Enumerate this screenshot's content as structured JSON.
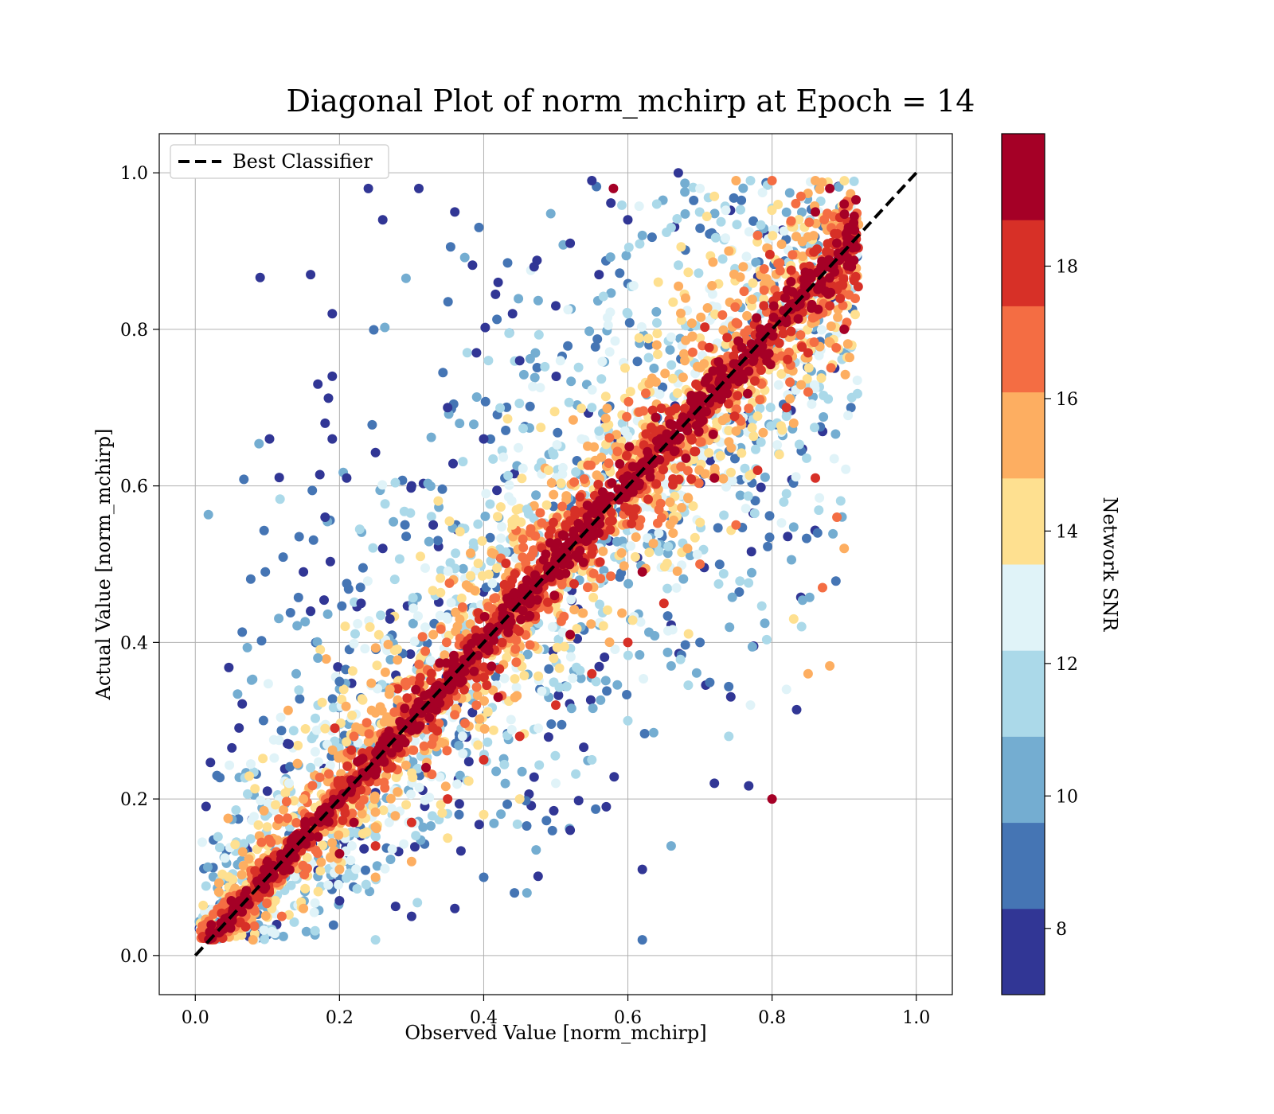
{
  "chart_data": {
    "type": "scatter",
    "title": "Diagonal Plot of norm_mchirp at Epoch = 14",
    "xlabel": "Observed Value [norm_mchirp]",
    "ylabel": "Actual Value [norm_mchirp]",
    "xlim": [
      -0.05,
      1.05
    ],
    "ylim": [
      -0.05,
      1.05
    ],
    "xticks": [
      "0.0",
      "0.2",
      "0.4",
      "0.6",
      "0.8",
      "1.0"
    ],
    "yticks": [
      "0.0",
      "0.2",
      "0.4",
      "0.6",
      "0.8",
      "1.0"
    ],
    "grid": true,
    "legend": {
      "position": "top-left",
      "entries": [
        "Best Classifier"
      ]
    },
    "reference_line": {
      "name": "Best Classifier",
      "style": "dashed",
      "color": "#000000",
      "x": [
        0.0,
        1.0
      ],
      "y": [
        0.0,
        1.0
      ]
    },
    "colorbar": {
      "label": "Network SNR",
      "range": [
        7,
        20
      ],
      "ticks": [
        "8",
        "10",
        "12",
        "14",
        "16",
        "18"
      ],
      "bins": [
        7,
        8.3,
        9.6,
        10.9,
        12.2,
        13.5,
        14.8,
        16.1,
        17.4,
        18.7,
        20
      ],
      "colors": [
        "#313695",
        "#4575b4",
        "#74add1",
        "#abd9e9",
        "#e0f3f8",
        "#fee090",
        "#fdae61",
        "#f46d43",
        "#d73027",
        "#a50026"
      ]
    },
    "points_summary": "dense scatter concentrated along the diagonal; high SNR (dark red) tightly around y=x, low SNR (blue) scattered above-left and below-right",
    "points": [
      [
        0.02,
        0.03,
        19
      ],
      [
        0.05,
        0.07,
        19
      ],
      [
        0.1,
        0.12,
        19
      ],
      [
        0.2,
        0.2,
        19
      ],
      [
        0.3,
        0.3,
        19
      ],
      [
        0.4,
        0.4,
        19
      ],
      [
        0.5,
        0.5,
        19
      ],
      [
        0.6,
        0.6,
        19
      ],
      [
        0.7,
        0.7,
        19
      ],
      [
        0.8,
        0.8,
        19
      ],
      [
        0.86,
        0.95,
        19
      ],
      [
        0.84,
        0.97,
        17
      ],
      [
        0.86,
        0.99,
        16
      ],
      [
        0.88,
        0.98,
        19
      ],
      [
        0.9,
        0.96,
        19
      ],
      [
        0.91,
        0.88,
        19
      ],
      [
        0.9,
        0.8,
        19
      ],
      [
        0.85,
        0.72,
        17
      ],
      [
        0.83,
        0.68,
        16
      ],
      [
        0.81,
        0.64,
        14
      ],
      [
        0.24,
        0.98,
        8
      ],
      [
        0.31,
        0.98,
        8
      ],
      [
        0.16,
        0.87,
        8
      ],
      [
        0.19,
        0.82,
        8
      ],
      [
        0.26,
        0.94,
        8
      ],
      [
        0.42,
        0.86,
        8
      ],
      [
        0.36,
        0.95,
        8
      ],
      [
        0.55,
        0.99,
        8
      ],
      [
        0.58,
        0.98,
        19
      ],
      [
        0.67,
        1.0,
        8
      ],
      [
        0.17,
        0.73,
        8
      ],
      [
        0.19,
        0.74,
        8
      ],
      [
        0.18,
        0.68,
        8
      ],
      [
        0.19,
        0.66,
        8
      ],
      [
        0.21,
        0.61,
        8
      ],
      [
        0.18,
        0.56,
        8
      ],
      [
        0.15,
        0.49,
        8
      ],
      [
        0.16,
        0.44,
        8
      ],
      [
        0.14,
        0.36,
        10
      ],
      [
        0.17,
        0.38,
        10
      ],
      [
        0.18,
        0.29,
        14
      ],
      [
        0.13,
        0.27,
        8
      ],
      [
        0.16,
        0.24,
        12
      ],
      [
        0.1,
        0.21,
        8
      ],
      [
        0.27,
        0.43,
        8
      ],
      [
        0.33,
        0.55,
        8
      ],
      [
        0.4,
        0.66,
        8
      ],
      [
        0.45,
        0.76,
        8
      ],
      [
        0.5,
        0.83,
        8
      ],
      [
        0.56,
        0.87,
        8
      ],
      [
        0.62,
        0.92,
        10
      ],
      [
        0.66,
        0.93,
        12
      ],
      [
        0.72,
        0.97,
        14
      ],
      [
        0.77,
        0.99,
        12
      ],
      [
        0.6,
        0.82,
        12
      ],
      [
        0.55,
        0.7,
        12
      ],
      [
        0.49,
        0.62,
        14
      ],
      [
        0.44,
        0.55,
        14
      ],
      [
        0.38,
        0.47,
        15
      ],
      [
        0.33,
        0.41,
        16
      ],
      [
        0.27,
        0.34,
        16
      ],
      [
        0.22,
        0.28,
        17
      ],
      [
        0.68,
        0.84,
        15
      ],
      [
        0.74,
        0.9,
        16
      ],
      [
        0.78,
        0.92,
        17
      ],
      [
        0.64,
        0.78,
        16
      ],
      [
        0.2,
        0.07,
        8
      ],
      [
        0.25,
        0.02,
        12
      ],
      [
        0.3,
        0.05,
        8
      ],
      [
        0.36,
        0.06,
        8
      ],
      [
        0.4,
        0.1,
        9
      ],
      [
        0.46,
        0.08,
        10
      ],
      [
        0.52,
        0.16,
        8
      ],
      [
        0.57,
        0.19,
        8
      ],
      [
        0.62,
        0.11,
        8
      ],
      [
        0.66,
        0.14,
        10
      ],
      [
        0.62,
        0.02,
        9
      ],
      [
        0.72,
        0.22,
        8
      ],
      [
        0.8,
        0.2,
        19
      ],
      [
        0.74,
        0.28,
        12
      ],
      [
        0.77,
        0.32,
        13
      ],
      [
        0.82,
        0.34,
        13
      ],
      [
        0.85,
        0.36,
        15
      ],
      [
        0.88,
        0.37,
        16
      ],
      [
        0.83,
        0.43,
        14
      ],
      [
        0.87,
        0.47,
        17
      ],
      [
        0.9,
        0.52,
        16
      ],
      [
        0.89,
        0.56,
        17
      ],
      [
        0.86,
        0.61,
        18
      ],
      [
        0.82,
        0.59,
        12
      ],
      [
        0.7,
        0.4,
        9
      ],
      [
        0.66,
        0.37,
        10
      ],
      [
        0.6,
        0.3,
        11
      ],
      [
        0.55,
        0.25,
        12
      ],
      [
        0.5,
        0.22,
        13
      ],
      [
        0.45,
        0.2,
        14
      ],
      [
        0.4,
        0.18,
        14
      ],
      [
        0.35,
        0.15,
        14
      ],
      [
        0.3,
        0.12,
        15
      ],
      [
        0.25,
        0.1,
        15
      ],
      [
        0.2,
        0.11,
        16
      ],
      [
        0.15,
        0.06,
        16
      ],
      [
        0.12,
        0.05,
        17
      ],
      [
        0.08,
        0.02,
        16
      ],
      [
        0.75,
        0.55,
        17
      ],
      [
        0.7,
        0.5,
        17
      ],
      [
        0.65,
        0.45,
        18
      ],
      [
        0.6,
        0.4,
        18
      ],
      [
        0.55,
        0.36,
        18
      ],
      [
        0.5,
        0.32,
        18
      ],
      [
        0.45,
        0.28,
        18
      ],
      [
        0.4,
        0.25,
        18
      ],
      [
        0.35,
        0.2,
        18
      ],
      [
        0.3,
        0.17,
        18
      ],
      [
        0.25,
        0.14,
        18
      ],
      [
        0.2,
        0.13,
        19
      ],
      [
        0.78,
        0.62,
        18
      ],
      [
        0.82,
        0.7,
        18
      ],
      [
        0.85,
        0.77,
        18
      ],
      [
        0.88,
        0.83,
        18
      ],
      [
        0.72,
        0.61,
        19
      ],
      [
        0.62,
        0.49,
        19
      ],
      [
        0.52,
        0.41,
        19
      ],
      [
        0.42,
        0.33,
        19
      ],
      [
        0.32,
        0.24,
        19
      ],
      [
        0.22,
        0.17,
        19
      ],
      [
        0.15,
        0.2,
        16
      ],
      [
        0.25,
        0.31,
        15
      ],
      [
        0.35,
        0.43,
        13
      ],
      [
        0.46,
        0.57,
        12
      ],
      [
        0.56,
        0.67,
        12
      ],
      [
        0.66,
        0.79,
        13
      ],
      [
        0.76,
        0.88,
        15
      ],
      [
        0.13,
        0.22,
        13
      ],
      [
        0.2,
        0.35,
        9
      ],
      [
        0.23,
        0.45,
        8
      ],
      [
        0.26,
        0.52,
        8
      ],
      [
        0.3,
        0.6,
        8
      ],
      [
        0.35,
        0.7,
        8
      ],
      [
        0.39,
        0.77,
        8
      ],
      [
        0.44,
        0.82,
        8
      ],
      [
        0.47,
        0.88,
        8
      ],
      [
        0.52,
        0.91,
        8
      ],
      [
        0.6,
        0.94,
        8
      ],
      [
        0.64,
        0.96,
        11
      ],
      [
        0.7,
        0.98,
        13
      ],
      [
        0.75,
        0.99,
        15
      ],
      [
        0.8,
        0.99,
        17
      ]
    ]
  }
}
